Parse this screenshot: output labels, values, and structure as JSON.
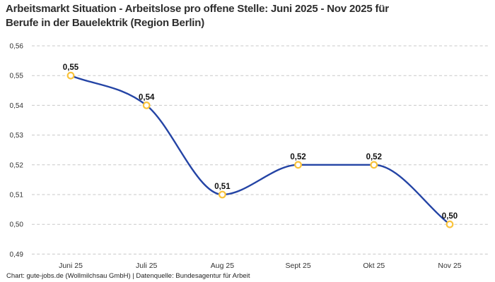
{
  "header": {
    "title_line1": "Arbeitsmarkt Situation - Arbeitslose pro offene Stelle: Juni 2025 - Nov 2025 für",
    "title_line2": "Berufe in der Bauelektrik (Region Berlin)"
  },
  "footer": {
    "attribution": "Chart: gute-jobs.de (Wollmilchsau GmbH) | Datenquelle: Bundesagentur für Arbeit"
  },
  "chart_data": {
    "type": "line",
    "title": "Arbeitsmarkt Situation - Arbeitslose pro offene Stelle: Juni 2025 - Nov 2025 für Berufe in der Bauelektrik (Region Berlin)",
    "categories": [
      "Juni 25",
      "Juli 25",
      "Aug 25",
      "Sept 25",
      "Okt 25",
      "Nov 25"
    ],
    "series": [
      {
        "name": "Arbeitslose pro offene Stelle",
        "values": [
          0.55,
          0.54,
          0.51,
          0.52,
          0.52,
          0.5
        ]
      }
    ],
    "point_labels": [
      "0,55",
      "0,54",
      "0,51",
      "0,52",
      "0,52",
      "0,50"
    ],
    "y_tick_values": [
      0.56,
      0.55,
      0.54,
      0.53,
      0.52,
      0.51,
      0.5,
      0.49
    ],
    "y_tick_labels": [
      "0,56",
      "0,55",
      "0,54",
      "0,53",
      "0,52",
      "0,51",
      "0,50",
      "0,49"
    ],
    "ylim": [
      0.49,
      0.56
    ],
    "xlabel": "",
    "ylabel": "",
    "grid": "horizontal-dashed",
    "legend": "none",
    "line_smoothing": "monotone-cubic",
    "colors": {
      "line": "#2444a5",
      "marker_stroke": "#f9c33c",
      "marker_fill": "#ffffff",
      "grid": "#c8c8c8",
      "axis_tick_text": "#333333",
      "point_label_text": "#111111",
      "title_text": "#2d2d2d",
      "background": "#ffffff"
    }
  }
}
